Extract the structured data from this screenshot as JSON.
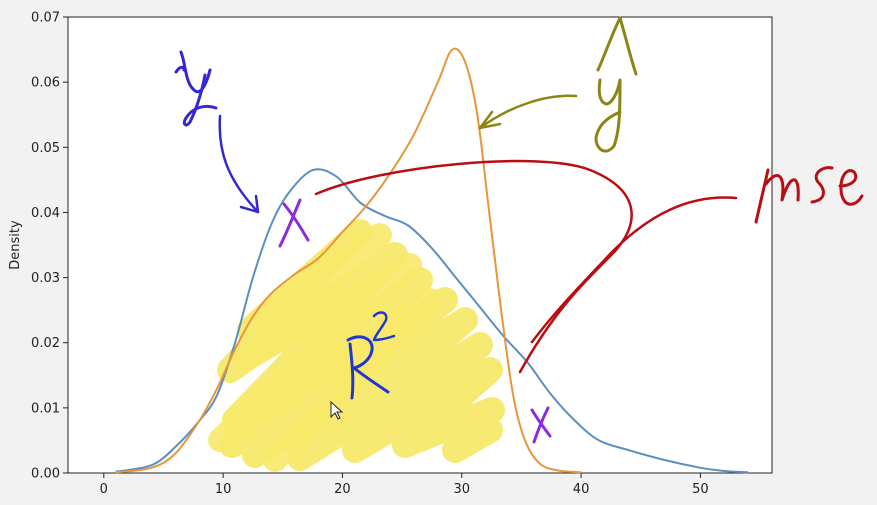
{
  "chart_data": {
    "type": "line",
    "ylabel": "Density",
    "xlabel": "",
    "xlim": [
      -3,
      56
    ],
    "ylim": [
      0,
      0.07
    ],
    "x_ticks": [
      "0",
      "10",
      "20",
      "30",
      "40",
      "50"
    ],
    "y_ticks": [
      "0.00",
      "0.01",
      "0.02",
      "0.03",
      "0.04",
      "0.05",
      "0.06",
      "0.07"
    ],
    "grid": false,
    "series": [
      {
        "color": "#5b8fc4",
        "points": [
          [
            1,
            0.0002
          ],
          [
            4,
            0.0012
          ],
          [
            6,
            0.004
          ],
          [
            8,
            0.008
          ],
          [
            9.5,
            0.012
          ],
          [
            11,
            0.02
          ],
          [
            12.5,
            0.03
          ],
          [
            14,
            0.038
          ],
          [
            15.5,
            0.043
          ],
          [
            17.5,
            0.0465
          ],
          [
            19.5,
            0.0455
          ],
          [
            21.5,
            0.0415
          ],
          [
            23.5,
            0.0395
          ],
          [
            25.5,
            0.038
          ],
          [
            27.5,
            0.0345
          ],
          [
            29.5,
            0.03
          ],
          [
            31.5,
            0.0255
          ],
          [
            33.5,
            0.021
          ],
          [
            35.5,
            0.017
          ],
          [
            37.5,
            0.012
          ],
          [
            39.5,
            0.008
          ],
          [
            41.5,
            0.005
          ],
          [
            44,
            0.0035
          ],
          [
            47,
            0.002
          ],
          [
            50,
            0.0008
          ],
          [
            52,
            0.0003
          ],
          [
            54,
            0.0001
          ]
        ]
      },
      {
        "color": "#e8953c",
        "points": [
          [
            1,
            0.0001
          ],
          [
            4,
            0.0008
          ],
          [
            6,
            0.003
          ],
          [
            8,
            0.008
          ],
          [
            9.5,
            0.013
          ],
          [
            11,
            0.019
          ],
          [
            12.5,
            0.024
          ],
          [
            14,
            0.0275
          ],
          [
            16,
            0.0305
          ],
          [
            18,
            0.033
          ],
          [
            20,
            0.037
          ],
          [
            22,
            0.041
          ],
          [
            24,
            0.046
          ],
          [
            26,
            0.052
          ],
          [
            28,
            0.06
          ],
          [
            29.2,
            0.065
          ],
          [
            30.3,
            0.063
          ],
          [
            31.3,
            0.055
          ],
          [
            32.3,
            0.04
          ],
          [
            33.3,
            0.025
          ],
          [
            34.3,
            0.012
          ],
          [
            35.3,
            0.005
          ],
          [
            36.5,
            0.0015
          ],
          [
            38,
            0.0004
          ],
          [
            40,
            0.0001
          ]
        ]
      }
    ],
    "annotations": [
      "y",
      "ŷ",
      "x",
      "mse",
      "R²",
      "x"
    ],
    "highlight_color": "#f7e96a"
  }
}
